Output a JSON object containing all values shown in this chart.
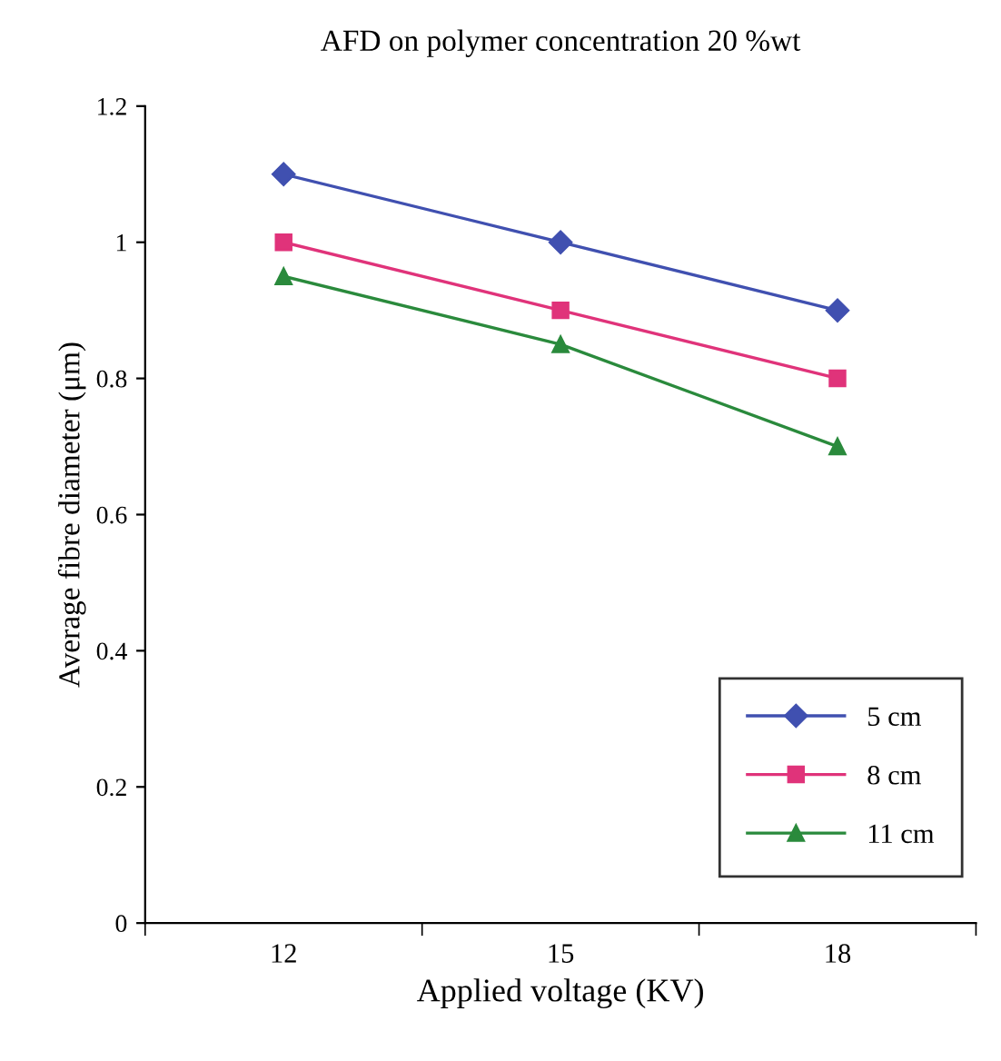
{
  "chart_data": {
    "type": "line",
    "title": "AFD on polymer concentration 20 %wt",
    "xlabel": "Applied voltage (KV)",
    "ylabel": "Average fibre diameter (μm)",
    "categories": [
      "12",
      "15",
      "18"
    ],
    "series": [
      {
        "name": "5 cm",
        "color": "#4050b0",
        "marker": "diamond",
        "values": [
          1.1,
          1.0,
          0.9
        ]
      },
      {
        "name": "8 cm",
        "color": "#e0337a",
        "marker": "square",
        "values": [
          1.0,
          0.9,
          0.8
        ]
      },
      {
        "name": "11 cm",
        "color": "#2a8a3c",
        "marker": "triangle",
        "values": [
          0.95,
          0.85,
          0.7
        ]
      }
    ],
    "ylim": [
      0,
      1.2
    ],
    "yticks": [
      0,
      0.2,
      0.4,
      0.6,
      0.8,
      1,
      1.2
    ],
    "grid": false,
    "legend": "bottom right",
    "line_style": "solid"
  }
}
